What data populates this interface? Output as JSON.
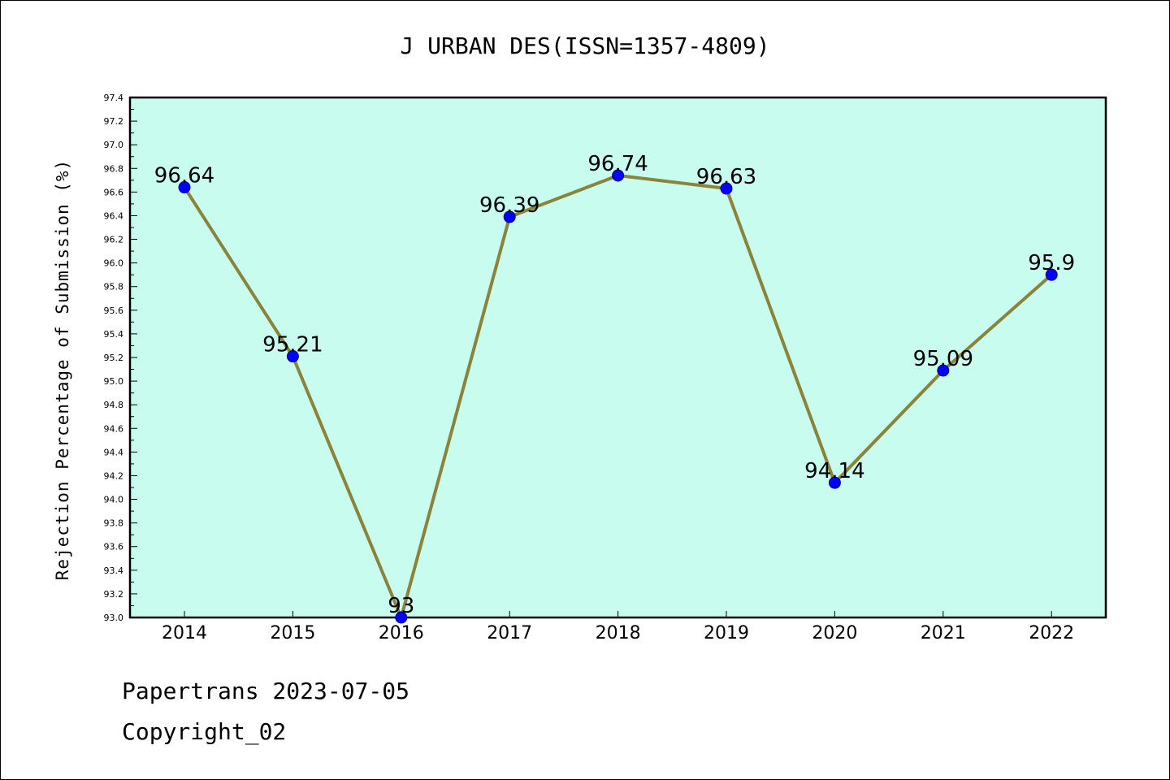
{
  "chart_data": {
    "type": "line",
    "title": "J URBAN DES(ISSN=1357-4809)",
    "ylabel": "Rejection Percentage of Submission (%)",
    "xlabel": "",
    "categories": [
      "2014",
      "2015",
      "2016",
      "2017",
      "2018",
      "2019",
      "2020",
      "2021",
      "2022"
    ],
    "values": [
      96.64,
      95.21,
      93,
      96.39,
      96.74,
      96.63,
      94.14,
      95.09,
      95.9
    ],
    "data_labels": [
      "96.64",
      "95.21",
      "93",
      "96.39",
      "96.74",
      "96.63",
      "94.14",
      "95.09",
      "95.9"
    ],
    "ylim": [
      93.0,
      97.4
    ],
    "yticks": [
      "93.0",
      "93.2",
      "93.4",
      "93.6",
      "93.8",
      "94.0",
      "94.2",
      "94.4",
      "94.6",
      "94.8",
      "95.0",
      "95.2",
      "95.4",
      "95.6",
      "95.8",
      "96.0",
      "96.2",
      "96.4",
      "96.6",
      "96.8",
      "97.0",
      "97.2",
      "97.4"
    ],
    "grid": false,
    "legend": "none",
    "colors": {
      "plot_background": "#c7fcee",
      "line": "#8b8339",
      "marker": "#0000ff"
    }
  },
  "footer": {
    "line1": "Papertrans 2023-07-05",
    "line2": "Copyright_02"
  }
}
